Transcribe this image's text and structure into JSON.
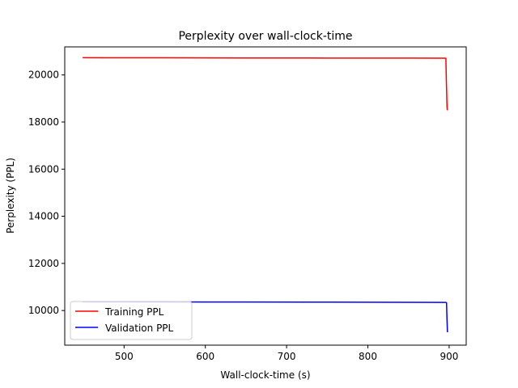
{
  "chart_data": {
    "type": "line",
    "title": "Perplexity over wall-clock-time",
    "xlabel": "Wall-clock-time (s)",
    "ylabel": "Perplexity (PPL)",
    "xlim": [
      427,
      921
    ],
    "ylim": [
      8530,
      21190
    ],
    "xticks": [
      500,
      600,
      700,
      800,
      900
    ],
    "yticks": [
      10000,
      12000,
      14000,
      16000,
      18000,
      20000
    ],
    "grid": false,
    "legend_position": "lower-left",
    "series": [
      {
        "name": "Training PPL",
        "color": "#ff0000",
        "x": [
          449,
          550,
          650,
          750,
          850,
          895,
          896,
          896.3,
          896.6,
          897,
          897.2,
          897.4,
          897.6,
          897.8
        ],
        "y": [
          20730,
          20725,
          20720,
          20715,
          20712,
          20710,
          20700,
          20200,
          19700,
          19200,
          18900,
          18650,
          18550,
          18500
        ]
      },
      {
        "name": "Validation PPL",
        "color": "#0000ff",
        "x": [
          449,
          550,
          650,
          750,
          850,
          896,
          896.8,
          897.1,
          897.4,
          897.7,
          897.9
        ],
        "y": [
          10370,
          10365,
          10360,
          10355,
          10348,
          10345,
          10330,
          9950,
          9600,
          9300,
          9080
        ]
      }
    ]
  }
}
